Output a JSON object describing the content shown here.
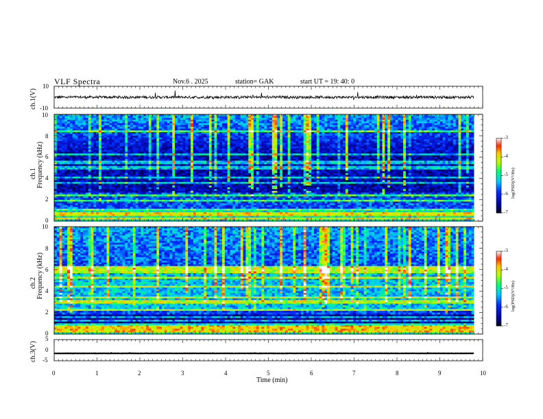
{
  "header": {
    "title": "VLF  Spectra",
    "date": "Nov.6   . 2025",
    "station": "station= GAK",
    "start_ut": "start  UT  =    19: 40: 0"
  },
  "colorbar": {
    "label": "log(PSD)(V²/Hz)",
    "ticks": [
      "-3",
      "-4",
      "-5",
      "-6",
      "-7"
    ],
    "colors": [
      "#ffffff",
      "#ff0000",
      "#ff7f00",
      "#ffff00",
      "#00ff00",
      "#00ffff",
      "#0000ff",
      "#000080",
      "#000000"
    ]
  },
  "chart_data": [
    {
      "type": "line",
      "name": "ch.1 waveform",
      "ylabel": "ch.1(V)",
      "ylim": [
        -10,
        10
      ],
      "yticks": [
        "10",
        "-10"
      ],
      "xlim": [
        0,
        10
      ],
      "baseline": 0.0,
      "noise_amplitude": 2.5
    },
    {
      "type": "heatmap",
      "name": "ch.1 spectrogram",
      "ylabel": "ch.1\nFrequency (kHz)",
      "ylim": [
        0,
        10
      ],
      "yticks": [
        "0",
        "2",
        "4",
        "6",
        "8",
        "10"
      ],
      "xlim": [
        0,
        9.8
      ],
      "clim": [
        -7,
        -3
      ]
    },
    {
      "type": "heatmap",
      "name": "ch.2 spectrogram",
      "ylabel": "ch.2\nFrequency (kHz)",
      "ylim": [
        0,
        10
      ],
      "yticks": [
        "0",
        "2",
        "4",
        "6",
        "8",
        "10"
      ],
      "xlim": [
        0,
        9.8
      ],
      "clim": [
        -7,
        -3
      ]
    },
    {
      "type": "line",
      "name": "ch.3 waveform",
      "ylabel": "ch.3(V)",
      "ylim": [
        -5,
        5
      ],
      "yticks": [
        "5",
        "0",
        "-5"
      ],
      "xlim": [
        0,
        10
      ],
      "baseline": -1.5,
      "noise_amplitude": 0.1
    }
  ],
  "xaxis": {
    "label": "Time  (min)",
    "ticks": [
      "0",
      "1",
      "2",
      "3",
      "4",
      "5",
      "6",
      "7",
      "8",
      "9",
      "10"
    ]
  }
}
